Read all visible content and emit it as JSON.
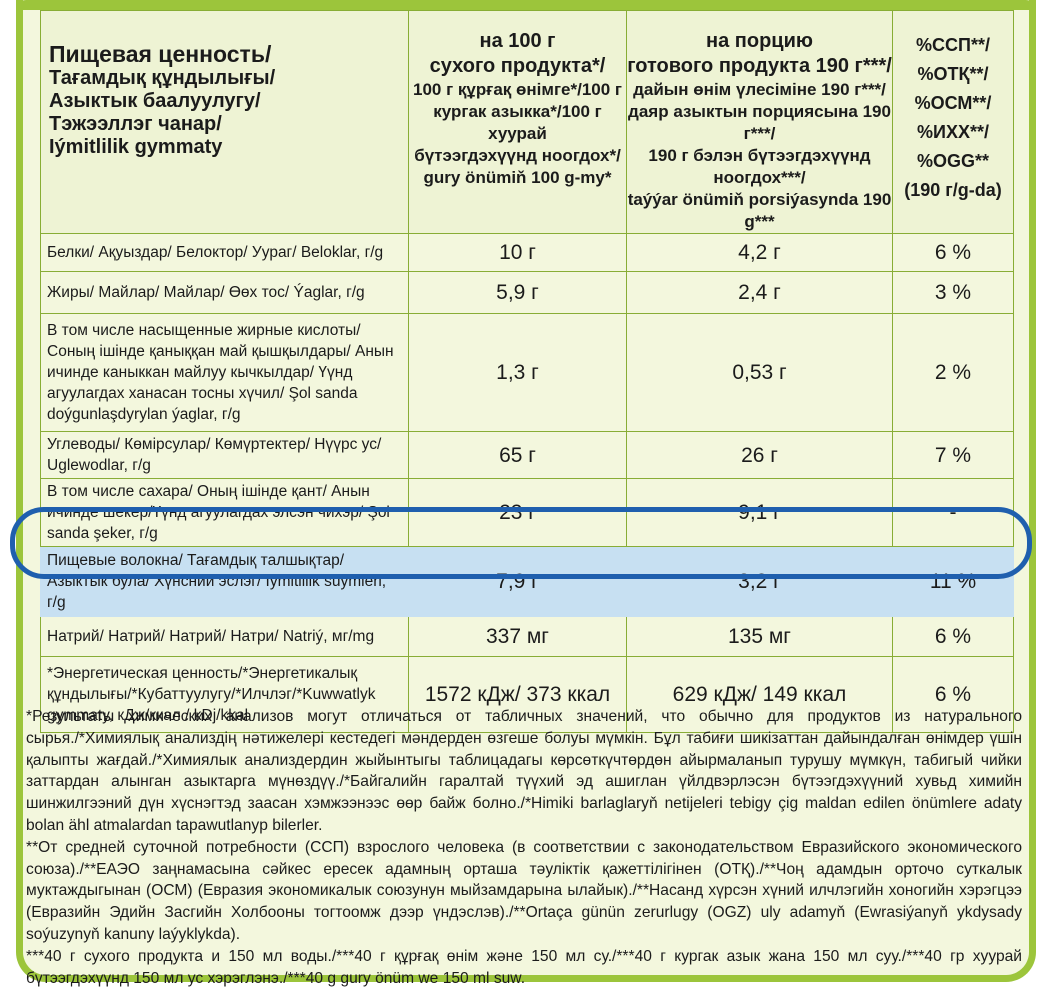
{
  "header": {
    "first_lines": [
      "Пищевая ценность/",
      "Тағамдық құндылығы/",
      "Азыктык баалуулугу/",
      "Тэжээллэг чанар/",
      "Iýmitlilik gymmaty"
    ],
    "col2_lines": [
      "на 100 г",
      "сухого продукта*/",
      "100 г құрғақ өнімге*/100 г",
      "кургак азыкка*/100 г хуурай",
      "бүтээгдэхүүнд ноогдох*/",
      "gury önümiň 100 g-my*"
    ],
    "col3_lines": [
      "на порцию",
      "готового продукта 190 г***/",
      "дайын өнім үлесіміне 190 г***/",
      "даяр азыктын порциясына 190 г***/",
      "190 г бэлэн бүтээгдэхүүнд ноогдох***/",
      "taýýar önümiň porsiýasynda 190 g***"
    ],
    "col4_lines": [
      "%ССП**/",
      "%ОТҚ**/",
      "%ОСМ**/",
      "%ИХХ**/",
      "%OGG**",
      "(190 г/g-da)"
    ]
  },
  "rows": [
    {
      "label": "Белки/ Ақуыздар/ Белоктор/ Уураг/ Beloklar, г/g",
      "per100": "10 г",
      "portion": "4,2 г",
      "pct": "6 %"
    },
    {
      "label": "Жиры/ Майлар/ Майлар/ Өөх тос/ Ýaglar, г/g",
      "per100": "5,9 г",
      "portion": "2,4 г",
      "pct": "3 %"
    },
    {
      "label": "В том числе насыщенные жирные кислоты/ Соның ішінде қаныққан май қышқылдары/ Анын ичинде каныккан майлуу кычкылдар/ Үүнд агуулагдах ханасан тосны хүчил/ Şol sanda doýgunlaşdyrylan ýaglar, г/g",
      "per100": "1,3 г",
      "portion": "0,53 г",
      "pct": "2 %"
    },
    {
      "label": "Углеводы/ Көмірсулар/ Көмүртектер/ Нүүрс ус/ Uglewodlar, г/g",
      "per100": "65 г",
      "portion": "26 г",
      "pct": "7 %"
    },
    {
      "label": "В том числе сахара/ Оның ішінде қант/ Анын ичинде шекер/Үүнд агуулагдах элсэн чихэр/ Şol sanda şeker, г/g",
      "per100": "23 г",
      "portion": "9,1 г",
      "pct": "-"
    },
    {
      "label": "Пищевые волокна/ Тағамдық талшықтар/ Азыктык була/ Хүнсний эслэг/ Iýmitlilik süýmleri, г/g",
      "per100": "7,9 г",
      "portion": "3,2 г",
      "pct": "11 %",
      "highlight": true
    },
    {
      "label": "Натрий/ Натрий/ Натрий/ Натри/ Natriý, мг/mg",
      "per100": "337 мг",
      "portion": "135 мг",
      "pct": "6 %"
    },
    {
      "label": "*Энергетическая ценность/*Энергетикалық құндылығы/*Кубаттуулугу/*Илчлэг/*Kuwwatlyk gymmaty, кДж/ккал / kDj/kkal",
      "per100": "1572 кДж/ 373 ккал",
      "portion": "629 кДж/ 149 ккал",
      "pct": "6 %"
    }
  ],
  "notes": {
    "note1": "*Результаты химических анализов могут отличаться от табличных значений, что обычно для продуктов из натурального сырья./*Химиялық анализдің нәтижелері кестедегі мәндерден өзгеше болуы мүмкін. Бұл табиғи шикізаттан дайындалған өнімдер үшін қалыпты жағдай./*Химиялык анализдердин жыйынтыгы таблицадагы көрсөткүчтөрдөн айырмаланып турушу мүмкүн, табигый чийки заттардан алынган азыктарга мүнөздүү./*Байгалийн гаралтай түүхий эд ашиглан үйлдвэрлэсэн бүтээгдэхүүний хувьд химийн шинжилгээний дүн хүснэгтэд заасан хэмжээнээс өөр байж болно./*Himiki barlaglaryň netijeleri tebigy çig maldan edilen önümlere adaty bolan ähl atmalardan tapawutlanyp bilerler.",
    "note2": "**От средней суточной потребности (ССП) взрослого человека (в соответствии с законодательством Евразийского экономического союза)./**ЕАЭО заңнамасына сәйкес ересек адамның орташа тәуліктік қажеттілігінен (ОТҚ)./**Чоң адамдын орточо суткалык муктаждыгынан (ОСМ) (Евразия экономикалык союзунун мыйзамдарына ылайык)./**Насанд хүрсэн хүний илчлэгийн хоногийн хэрэгцээ (Евразийн Эдийн Засгийн Холбооны тогтоомж дээр үндэслэв)./**Ortaça günün zerurlugy (OGZ) uly adamyň (Ewrasiýanyň ykdysady soýuzynyň kanuny laýyklykda).",
    "note3": "***40 г сухого продукта и 150 мл воды./***40 г құрғақ өнім және 150 мл су./***40 г кургак азык жана 150 мл суу./***40 гр хуурай бүтээгдэхүүнд 150 мл ус хэрэглэнэ./***40 g gury önüm we 150 ml suw."
  }
}
